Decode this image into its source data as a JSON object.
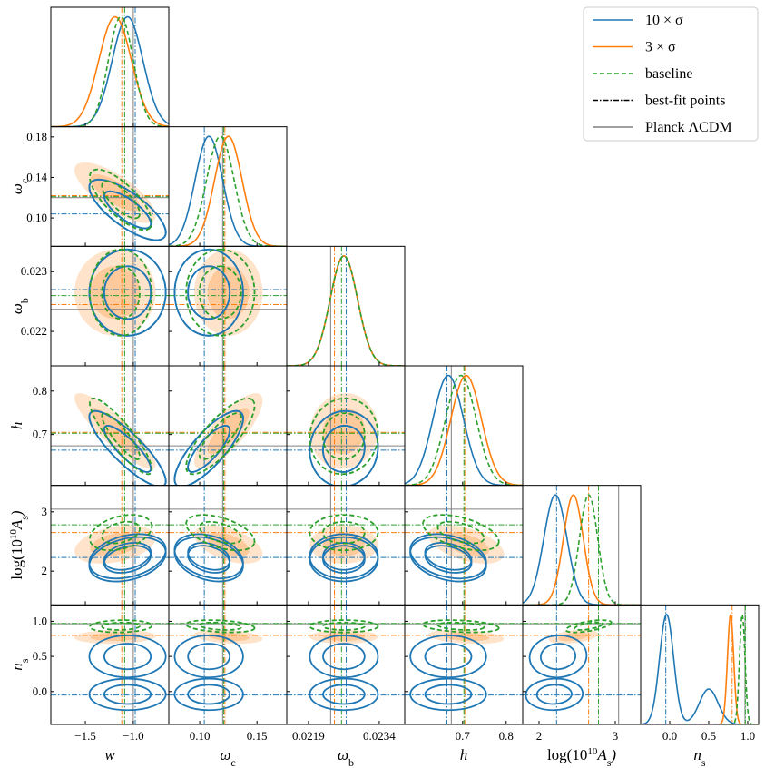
{
  "chart_data": {
    "type": "corner",
    "parameters": [
      {
        "label": [
          {
            "text": "w"
          }
        ],
        "xlim": [
          -1.86,
          -0.63
        ],
        "xticks": [
          {
            "value": -1.5,
            "label": "−1.5"
          },
          {
            "value": -1,
            "label": "−1.0"
          }
        ]
      },
      {
        "label": [
          {
            "text": "ω"
          },
          {
            "text": "c",
            "pos": "sub"
          }
        ],
        "xlim": [
          0.073,
          0.176
        ],
        "xticks": [
          {
            "value": 0.1,
            "label": "0.10"
          },
          0.15
        ],
        "ylim": [
          0.072,
          0.19
        ],
        "yticks": [
          0.18,
          0.14,
          {
            "value": 0.1,
            "label": "0.10"
          }
        ]
      },
      {
        "label": [
          {
            "text": "ω"
          },
          {
            "text": "b",
            "pos": "sub"
          }
        ],
        "xlim": [
          0.02144,
          0.02394
        ],
        "xticks": [
          0.0219,
          0.0234
        ],
        "ylim": [
          0.021424,
          0.023424
        ],
        "yticks": [
          0.023,
          0.022
        ]
      },
      {
        "label": [
          {
            "text": "h"
          }
        ],
        "xlim": [
          0.567,
          0.838
        ],
        "xticks": [
          0.7,
          0.8
        ],
        "ylim": [
          0.583,
          0.858
        ],
        "yticks": [
          0.8,
          0.7
        ]
      },
      {
        "label": [
          {
            "text": "log(10"
          },
          {
            "text": "10",
            "pos": "sup"
          },
          {
            "text": "A"
          },
          {
            "text": "s",
            "pos": "sub"
          },
          {
            "text": ")"
          }
        ],
        "xlim": [
          1.786,
          3.333
        ],
        "xticks": [
          2,
          3
        ],
        "ylim": [
          1.431,
          3.446
        ],
        "yticks": [
          3,
          2
        ]
      },
      {
        "label": [
          {
            "text": "n"
          },
          {
            "text": "s",
            "pos": "sub"
          }
        ],
        "xlim": [
          -0.372,
          1.14
        ],
        "xticks": [
          {
            "value": 0,
            "label": "0.0"
          },
          0.5,
          {
            "value": 1,
            "label": "1.0"
          }
        ],
        "ylim": [
          -0.468,
          1.234
        ],
        "yticks": [
          {
            "value": 1,
            "label": "1.0"
          },
          0.5,
          {
            "value": 0,
            "label": "0.0"
          }
        ]
      }
    ],
    "series": [
      {
        "name": "10 × σ",
        "color": "#1f77b4",
        "line": "solid",
        "fill": false,
        "modes": [
          {
            "weight": 0.7,
            "mean": [
              -1.06,
              0.108,
              0.02265,
              0.667,
              2.2,
              -0.04
            ],
            "std": [
              0.16,
              0.012,
              0.00029,
              0.035,
              0.15,
              0.09
            ]
          },
          {
            "weight": 0.3,
            "mean": [
              -1.06,
              0.108,
              0.02265,
              0.667,
              2.25,
              0.5
            ],
            "std": [
              0.16,
              0.012,
              0.00029,
              0.035,
              0.15,
              0.12
            ]
          }
        ],
        "corr": [
          -0.75,
          0,
          0,
          -0.85,
          0.8,
          0.05,
          0.3,
          -0.3,
          0,
          -0.3,
          0,
          0,
          0,
          0,
          0.05
        ],
        "best_fit": [
          -0.98,
          0.104,
          0.0227,
          0.664,
          2.23,
          -0.05
        ]
      },
      {
        "name": "3 × σ",
        "color": "#ff7f0e",
        "line": "solid",
        "fill": true,
        "modes": [
          {
            "weight": 1,
            "mean": [
              -1.19,
              0.125,
              0.02265,
              0.708,
              2.45,
              0.78
            ],
            "std": [
              0.17,
              0.012,
              0.00029,
              0.035,
              0.13,
              0.04
            ]
          }
        ],
        "corr": [
          -0.75,
          0,
          0,
          -0.88,
          0.8,
          0.05,
          0.35,
          -0.5,
          0,
          -0.5,
          0.1,
          -0.3,
          0,
          -0.3,
          0.4
        ],
        "best_fit": [
          -1.12,
          0.122,
          0.02245,
          0.705,
          2.65,
          0.8
        ]
      },
      {
        "name": "baseline",
        "color": "#2ca02c",
        "line": "dashed",
        "fill": false,
        "modes": [
          {
            "weight": 1,
            "mean": [
              -1.13,
              0.118,
              0.02265,
              0.696,
              2.65,
              0.93
            ],
            "std": [
              0.13,
              0.012,
              0.00029,
              0.035,
              0.12,
              0.035
            ]
          }
        ],
        "corr": [
          -0.75,
          0,
          0,
          -0.88,
          0.8,
          0.05,
          0.35,
          -0.5,
          0,
          -0.5,
          0.1,
          -0.3,
          0,
          -0.3,
          0.6
        ],
        "best_fit": [
          -1.09,
          0.121,
          0.0226,
          0.703,
          2.78,
          0.97
        ]
      }
    ],
    "best_fit_name": "best-fit points",
    "best_fit_line": "dashdot",
    "planck": {
      "name": "Planck ΛCDM",
      "color": "#808080",
      "values": [
        -1,
        0.12,
        0.02237,
        0.674,
        3.044,
        0.965
      ]
    }
  }
}
